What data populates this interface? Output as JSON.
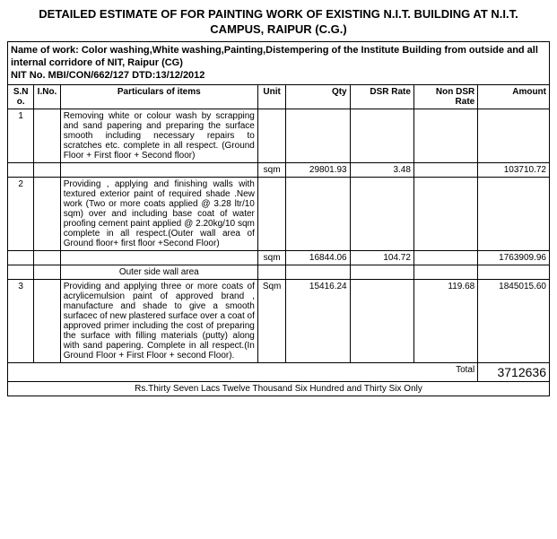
{
  "title_line1": "DETAILED ESTIMATE OF FOR PAINTING   WORK   OF EXISTING N.I.T. BUILDING AT N.I.T.",
  "title_line2": "CAMPUS, RAIPUR (C.G.)",
  "work_name_line1": "Name of work: Color washing,White washing,Painting,Distempering of the Institute Building from outside and all",
  "work_name_line2": "internal corridore of NIT, Raipur (CG)",
  "nit_no": "NIT No. MBI/CON/662/127 DTD:13/12/2012",
  "headers": {
    "sno": "S.No.",
    "ino": "I.No.",
    "particulars": "Particulars of items",
    "unit": "Unit",
    "qty": "Qty",
    "dsr": "DSR Rate",
    "nondsr": "Non DSR Rate",
    "amount": "Amount"
  },
  "rows": [
    {
      "sno": "1",
      "ino": "",
      "desc": "Removing white or colour wash by scrapping and sand papering and preparing the surface smooth including necessary repairs to scratches etc. complete in all respect.  (Ground Floor + First floor + Second floor)",
      "sub_label": "",
      "unit": "sqm",
      "qty": "29801.93",
      "dsr": "3.48",
      "nondsr": "",
      "amount": "103710.72"
    },
    {
      "sno": "2",
      "ino": "",
      "desc": "Providing , applying and finishing walls with textured exterior paint of required shade .New work (Two or more coats applied @ 3.28 ltr/10 sqm) over and including base coat of water proofing cement paint applied @ 2.20kg/10 sqm complete in all respect.(Outer wall area of Ground floor+ first floor +Second Floor)",
      "sub_label": "Outer side wall area",
      "unit": "sqm",
      "qty": "16844.06",
      "dsr": "104.72",
      "nondsr": "",
      "amount": "1763909.96"
    },
    {
      "sno": "3",
      "ino": "",
      "desc": " Providing and applying three or more coats of acrylicemulsion paint of approved brand , manufacture and shade to give a smooth surfacec of new plastered surface  over a coat of approved primer including the cost of preparing the surface with filling materials (putty) along with sand papering. Complete in all respect.(In Ground Floor + First Floor + second Floor).",
      "sub_label": "",
      "unit": "Sqm",
      "qty": "15416.24",
      "dsr": "",
      "nondsr": "119.68",
      "amount": "1845015.60"
    }
  ],
  "total_label": "Total",
  "total_amount": "3712636",
  "amount_words": "Rs.Thirty Seven Lacs Twelve Thousand Six Hundred and Thirty Six Only"
}
